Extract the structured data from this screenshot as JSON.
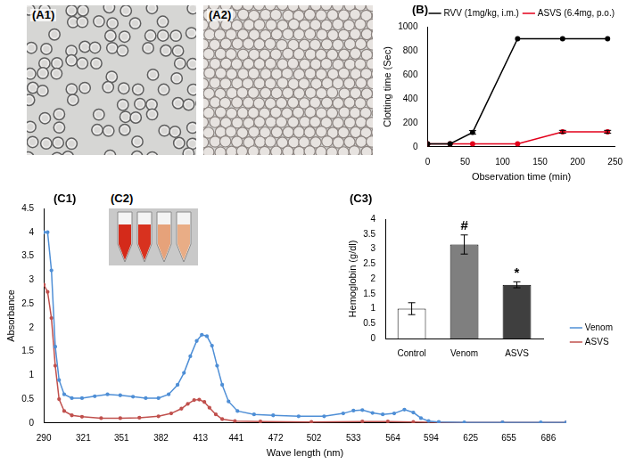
{
  "images": [
    {
      "label": "(A1)"
    },
    {
      "label": "(A2)"
    },
    {
      "label": "(C2)"
    }
  ],
  "chart_data": [
    {
      "panel": "(B)",
      "type": "line",
      "x_label": "Observation time (min)",
      "y_label": "Clotting time (Sec)",
      "x": [
        0,
        30,
        60,
        120,
        180,
        240
      ],
      "xlim": [
        0,
        250
      ],
      "xticks": [
        0,
        50,
        100,
        150,
        200,
        250
      ],
      "ylim": [
        0,
        1000
      ],
      "yticks": [
        0,
        200,
        400,
        600,
        800,
        1000
      ],
      "grid": false,
      "legend": "top-right",
      "series": [
        {
          "name": "RVV (1mg/kg, i.m.)",
          "color": "#000000",
          "marker": "circle",
          "values": [
            25,
            25,
            120,
            900,
            900,
            900
          ],
          "errors": [
            null,
            null,
            15,
            null,
            null,
            null
          ]
        },
        {
          "name": "ASVS (6.4mg, p.o.)",
          "color": "#e3001b",
          "marker": "circle",
          "values": [
            25,
            25,
            25,
            25,
            125,
            125
          ],
          "errors": [
            null,
            null,
            null,
            null,
            12,
            12
          ]
        }
      ]
    },
    {
      "panel": "(C1)",
      "type": "line",
      "x_label": "Wave length (nm)",
      "y_label": "Absorbance",
      "xlim": [
        290,
        700
      ],
      "xticks": [
        290,
        321,
        351,
        382,
        413,
        441,
        472,
        502,
        533,
        564,
        594,
        625,
        655,
        686
      ],
      "ylim": [
        0,
        4.5
      ],
      "yticks": [
        0,
        0.5,
        1,
        1.5,
        2,
        2.5,
        3,
        3.5,
        4,
        4.5
      ],
      "grid": false,
      "legend": "right",
      "series": [
        {
          "name": "Venom",
          "color": "#4f8fd6",
          "marker": "circle",
          "x": [
            290,
            293,
            296,
            299,
            302,
            306,
            312,
            320,
            330,
            340,
            350,
            360,
            370,
            380,
            388,
            395,
            400,
            405,
            410,
            414,
            418,
            422,
            426,
            430,
            435,
            442,
            455,
            470,
            490,
            510,
            525,
            533,
            540,
            548,
            556,
            565,
            573,
            580,
            586,
            592,
            600,
            620,
            650,
            680,
            700
          ],
          "values": [
            4.0,
            4.0,
            3.2,
            1.6,
            0.9,
            0.6,
            0.52,
            0.52,
            0.56,
            0.6,
            0.58,
            0.55,
            0.52,
            0.52,
            0.6,
            0.8,
            1.05,
            1.4,
            1.72,
            1.85,
            1.82,
            1.62,
            1.2,
            0.8,
            0.45,
            0.25,
            0.18,
            0.16,
            0.14,
            0.14,
            0.2,
            0.26,
            0.27,
            0.21,
            0.18,
            0.2,
            0.28,
            0.22,
            0.1,
            0.04,
            0.02,
            0.01,
            0.01,
            0.01,
            0.01
          ]
        },
        {
          "name": "ASVS",
          "color": "#c0504d",
          "marker": "circle",
          "x": [
            290,
            293,
            296,
            299,
            302,
            306,
            312,
            320,
            335,
            350,
            365,
            380,
            390,
            398,
            403,
            408,
            412,
            416,
            420,
            425,
            430,
            440,
            460,
            500,
            540,
            560,
            580,
            600,
            650,
            700
          ],
          "values": [
            2.9,
            2.75,
            2.2,
            1.2,
            0.5,
            0.25,
            0.16,
            0.13,
            0.1,
            0.1,
            0.11,
            0.14,
            0.2,
            0.3,
            0.4,
            0.48,
            0.49,
            0.44,
            0.32,
            0.18,
            0.08,
            0.04,
            0.03,
            0.02,
            0.03,
            0.03,
            0.02,
            0.01,
            0.01,
            0.01
          ]
        }
      ]
    },
    {
      "panel": "(C3)",
      "type": "bar",
      "y_label": "Hemoglobin (g/dl)",
      "categories": [
        "Control",
        "Venom",
        "ASVS"
      ],
      "values": [
        1.0,
        3.15,
        1.8
      ],
      "errors": [
        0.2,
        0.32,
        0.1
      ],
      "colors": [
        "#ffffff",
        "#7f7f7f",
        "#3f3f3f"
      ],
      "ylim": [
        0,
        4
      ],
      "yticks": [
        0,
        0.5,
        1,
        1.5,
        2,
        2.5,
        3,
        3.5,
        4
      ],
      "grid": false,
      "annotations": [
        {
          "category": "Venom",
          "text": "#"
        },
        {
          "category": "ASVS",
          "text": "*"
        }
      ]
    }
  ]
}
